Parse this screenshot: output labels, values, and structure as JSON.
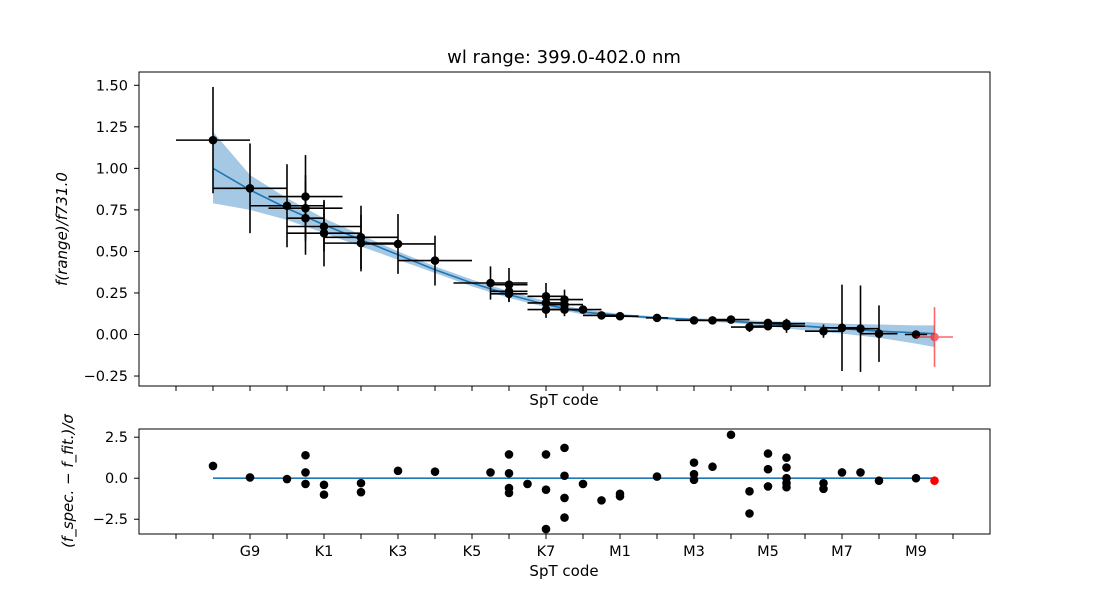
{
  "chart_data": [
    {
      "type": "scatter",
      "title": "wl range: 399.0-402.0 nm",
      "xlabel": "SpT code",
      "ylabel": "f(range)/f731.0",
      "xlim": [
        -4,
        19
      ],
      "ylim": [
        -0.31,
        1.58
      ],
      "yticks": [
        -0.25,
        0.0,
        0.25,
        0.5,
        0.75,
        1.0,
        1.25,
        1.5
      ],
      "ytick_labels": [
        "−0.25",
        "0.00",
        "0.25",
        "0.50",
        "0.75",
        "1.00",
        "1.25",
        "1.50"
      ],
      "fit_line": {
        "x": [
          -2,
          -1,
          0,
          1,
          2,
          3,
          4,
          5,
          6,
          7,
          8,
          9,
          10,
          11,
          12,
          13,
          14,
          15,
          16,
          17,
          17.5
        ],
        "y": [
          1.0,
          0.87,
          0.76,
          0.66,
          0.57,
          0.48,
          0.39,
          0.31,
          0.24,
          0.18,
          0.135,
          0.115,
          0.1,
          0.09,
          0.08,
          0.065,
          0.05,
          0.035,
          0.02,
          0.01,
          0.005
        ],
        "band_upper": [
          1.22,
          0.96,
          0.82,
          0.7,
          0.6,
          0.5,
          0.41,
          0.33,
          0.26,
          0.2,
          0.15,
          0.125,
          0.108,
          0.098,
          0.09,
          0.08,
          0.075,
          0.065,
          0.06,
          0.055,
          0.055
        ],
        "band_lower": [
          0.79,
          0.75,
          0.69,
          0.61,
          0.53,
          0.45,
          0.37,
          0.29,
          0.22,
          0.165,
          0.12,
          0.105,
          0.092,
          0.082,
          0.07,
          0.05,
          0.025,
          0.005,
          -0.02,
          -0.055,
          -0.075
        ]
      },
      "points": [
        {
          "x": -2,
          "y": 1.17,
          "xerr": 1,
          "yerr": 0.32
        },
        {
          "x": -1,
          "y": 0.88,
          "xerr": 1,
          "yerr": 0.27
        },
        {
          "x": 0,
          "y": 0.775,
          "xerr": 1,
          "yerr": 0.25
        },
        {
          "x": 0.5,
          "y": 0.83,
          "xerr": 1,
          "yerr": 0.25
        },
        {
          "x": 0.5,
          "y": 0.76,
          "xerr": 1,
          "yerr": 0.2
        },
        {
          "x": 0.5,
          "y": 0.7,
          "xerr": 0.5,
          "yerr": 0.22
        },
        {
          "x": 1,
          "y": 0.65,
          "xerr": 1,
          "yerr": 0.15
        },
        {
          "x": 1,
          "y": 0.61,
          "xerr": 1,
          "yerr": 0.2
        },
        {
          "x": 2,
          "y": 0.585,
          "xerr": 1,
          "yerr": 0.19
        },
        {
          "x": 2,
          "y": 0.55,
          "xerr": 1,
          "yerr": 0.17
        },
        {
          "x": 3,
          "y": 0.545,
          "xerr": 1,
          "yerr": 0.18
        },
        {
          "x": 4,
          "y": 0.445,
          "xerr": 1,
          "yerr": 0.15
        },
        {
          "x": 5.5,
          "y": 0.31,
          "xerr": 1,
          "yerr": 0.1
        },
        {
          "x": 6,
          "y": 0.3,
          "xerr": 0.5,
          "yerr": 0.1
        },
        {
          "x": 6,
          "y": 0.26,
          "xerr": 0.5,
          "yerr": 0.05
        },
        {
          "x": 6,
          "y": 0.245,
          "xerr": 0.5,
          "yerr": 0.05
        },
        {
          "x": 7,
          "y": 0.23,
          "xerr": 0.5,
          "yerr": 0.08
        },
        {
          "x": 7,
          "y": 0.19,
          "xerr": 0.5,
          "yerr": 0.05
        },
        {
          "x": 7,
          "y": 0.15,
          "xerr": 0.5,
          "yerr": 0.05
        },
        {
          "x": 7.5,
          "y": 0.21,
          "xerr": 0.5,
          "yerr": 0.06
        },
        {
          "x": 7.5,
          "y": 0.18,
          "xerr": 0.5,
          "yerr": 0.05
        },
        {
          "x": 7.5,
          "y": 0.15,
          "xerr": 0.5,
          "yerr": 0.04
        },
        {
          "x": 8,
          "y": 0.15,
          "xerr": 0.5,
          "yerr": 0.02
        },
        {
          "x": 8.5,
          "y": 0.115,
          "xerr": 0.5,
          "yerr": 0.015
        },
        {
          "x": 9,
          "y": 0.11,
          "xerr": 0.5,
          "yerr": 0.015
        },
        {
          "x": 10,
          "y": 0.1,
          "xerr": 0.3,
          "yerr": 0.015
        },
        {
          "x": 11,
          "y": 0.085,
          "xerr": 0.5,
          "yerr": 0.015
        },
        {
          "x": 11.5,
          "y": 0.085,
          "xerr": 0.5,
          "yerr": 0.015
        },
        {
          "x": 12,
          "y": 0.09,
          "xerr": 0.5,
          "yerr": 0.015
        },
        {
          "x": 12.5,
          "y": 0.045,
          "xerr": 0.5,
          "yerr": 0.03
        },
        {
          "x": 13,
          "y": 0.07,
          "xerr": 0.5,
          "yerr": 0.02
        },
        {
          "x": 13,
          "y": 0.05,
          "xerr": 0.5,
          "yerr": 0.02
        },
        {
          "x": 13.5,
          "y": 0.065,
          "xerr": 0.5,
          "yerr": 0.03
        },
        {
          "x": 13.5,
          "y": 0.05,
          "xerr": 0.5,
          "yerr": 0.04
        },
        {
          "x": 14.5,
          "y": 0.02,
          "xerr": 0.5,
          "yerr": 0.04
        },
        {
          "x": 15,
          "y": 0.04,
          "xerr": 0.5,
          "yerr": 0.26
        },
        {
          "x": 15.5,
          "y": 0.035,
          "xerr": 0.5,
          "yerr": 0.26
        },
        {
          "x": 16,
          "y": 0.005,
          "xerr": 0.5,
          "yerr": 0.17
        },
        {
          "x": 17,
          "y": 0.0,
          "xerr": 0.3,
          "yerr": 0.02
        }
      ],
      "outlier_point": {
        "x": 17.5,
        "y": -0.015,
        "xerr": 0.5,
        "yerr": 0.18,
        "color": "#ff0000"
      }
    },
    {
      "type": "scatter",
      "title": "",
      "xlabel": "SpT code",
      "ylabel": "(f_spec. − f_fit.)/σ",
      "xlim": [
        -4,
        19
      ],
      "ylim": [
        -3.4,
        3.0
      ],
      "yticks": [
        -2.5,
        0.0,
        2.5
      ],
      "ytick_labels": [
        "−2.5",
        "0.0",
        "2.5"
      ],
      "xticks": [
        -1,
        1,
        3,
        5,
        7,
        9,
        11,
        13,
        15,
        17
      ],
      "xtick_labels": [
        "G9",
        "K1",
        "K3",
        "K5",
        "K7",
        "M1",
        "M3",
        "M5",
        "M7",
        "M9"
      ],
      "zero_line": {
        "x": [
          -2,
          17.5
        ],
        "y": [
          0,
          0
        ]
      },
      "points": [
        {
          "x": -2,
          "y": 0.75
        },
        {
          "x": -1,
          "y": 0.05
        },
        {
          "x": 0,
          "y": -0.05
        },
        {
          "x": 0.5,
          "y": 1.4
        },
        {
          "x": 0.5,
          "y": 0.35
        },
        {
          "x": 0.5,
          "y": -0.35
        },
        {
          "x": 1,
          "y": -0.4
        },
        {
          "x": 1,
          "y": -1.0
        },
        {
          "x": 2,
          "y": -0.3
        },
        {
          "x": 2,
          "y": -0.85
        },
        {
          "x": 3,
          "y": 0.45
        },
        {
          "x": 4,
          "y": 0.4
        },
        {
          "x": 5.5,
          "y": 0.35
        },
        {
          "x": 6,
          "y": 1.45
        },
        {
          "x": 6,
          "y": 0.3
        },
        {
          "x": 6,
          "y": -0.6
        },
        {
          "x": 6,
          "y": -0.9
        },
        {
          "x": 6.5,
          "y": -0.35
        },
        {
          "x": 7,
          "y": 1.45
        },
        {
          "x": 7,
          "y": -0.7
        },
        {
          "x": 7,
          "y": -3.1
        },
        {
          "x": 7.5,
          "y": 1.85
        },
        {
          "x": 7.5,
          "y": 0.15
        },
        {
          "x": 7.5,
          "y": -1.2
        },
        {
          "x": 7.5,
          "y": -2.4
        },
        {
          "x": 8,
          "y": -0.35
        },
        {
          "x": 8.5,
          "y": -1.35
        },
        {
          "x": 9,
          "y": -0.95
        },
        {
          "x": 9,
          "y": -1.1
        },
        {
          "x": 10,
          "y": 0.1
        },
        {
          "x": 11,
          "y": 0.95
        },
        {
          "x": 11,
          "y": 0.25
        },
        {
          "x": 11,
          "y": -0.1
        },
        {
          "x": 11.5,
          "y": 0.7
        },
        {
          "x": 12,
          "y": 2.65
        },
        {
          "x": 12.5,
          "y": -0.8
        },
        {
          "x": 12.5,
          "y": -2.15
        },
        {
          "x": 13,
          "y": 1.5
        },
        {
          "x": 13,
          "y": 0.55
        },
        {
          "x": 13,
          "y": -0.5
        },
        {
          "x": 13.5,
          "y": 1.25
        },
        {
          "x": 13.5,
          "y": 0.65
        },
        {
          "x": 13.5,
          "y": 0.0
        },
        {
          "x": 13.5,
          "y": -0.3
        },
        {
          "x": 13.5,
          "y": -0.55
        },
        {
          "x": 14.5,
          "y": -0.3
        },
        {
          "x": 14.5,
          "y": -0.65
        },
        {
          "x": 15,
          "y": 0.35
        },
        {
          "x": 15.5,
          "y": 0.35
        },
        {
          "x": 16,
          "y": -0.15
        },
        {
          "x": 17,
          "y": 0.0
        }
      ],
      "outlier_point": {
        "x": 17.5,
        "y": -0.15,
        "color": "#ff0000"
      }
    }
  ],
  "colors": {
    "fit_line": "#1f77b4",
    "fit_band": "#a5c8e4",
    "points": "#000000",
    "outlier": "#ff0000"
  }
}
